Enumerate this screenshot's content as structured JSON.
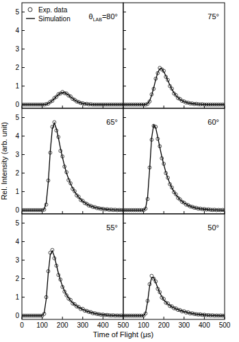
{
  "chart_data": [
    {
      "type": "line",
      "title": "θLAB=80°",
      "y_label": "Rel. Intensity (arb. unit)",
      "x_label": "Time of Flight (μs)",
      "legend": "upper left",
      "tick_labels": "y",
      "x": [
        0,
        10,
        20,
        30,
        40,
        50,
        60,
        70,
        80,
        90,
        100,
        110,
        120,
        130,
        140,
        150,
        160,
        170,
        180,
        190,
        200,
        210,
        220,
        230,
        240,
        250,
        260,
        270,
        280,
        290,
        300,
        310,
        320,
        330,
        340,
        350,
        360,
        370,
        380,
        390,
        400,
        410,
        420,
        430,
        440,
        450,
        460,
        470,
        480,
        490,
        500
      ],
      "xlim": [
        0,
        500
      ],
      "xticks": [
        0,
        100,
        200,
        300,
        400,
        500
      ],
      "ylim": [
        -0.2,
        5.5
      ],
      "yticks": [
        0,
        1,
        2,
        3,
        4,
        5
      ],
      "series": [
        {
          "name": "Exp. data",
          "type": "scatter",
          "marker": "circle",
          "color": "#333333",
          "values": [
            0,
            0,
            0,
            0,
            0,
            0,
            0,
            0,
            0,
            0,
            0,
            0,
            0.03,
            0.05,
            0.15,
            0.2,
            0.35,
            0.42,
            0.56,
            0.6,
            0.68,
            0.62,
            0.6,
            0.49,
            0.44,
            0.31,
            0.26,
            0.17,
            0.14,
            0.08,
            0.07,
            0.03,
            0.04,
            0.01,
            0.02,
            0,
            0,
            0,
            0,
            0,
            0,
            0,
            0,
            0,
            0,
            0,
            0,
            0,
            0,
            0,
            0
          ]
        },
        {
          "name": "Simulation",
          "type": "line",
          "line_style": "solid",
          "color": "#000000",
          "values": [
            0,
            0,
            0,
            0,
            0,
            0,
            0,
            0,
            0,
            0,
            0,
            0,
            0.02,
            0.06,
            0.13,
            0.22,
            0.33,
            0.44,
            0.54,
            0.61,
            0.65,
            0.64,
            0.59,
            0.51,
            0.42,
            0.33,
            0.25,
            0.18,
            0.13,
            0.09,
            0.06,
            0.04,
            0.03,
            0.02,
            0.01,
            0,
            0,
            0,
            0,
            0,
            0,
            0,
            0,
            0,
            0,
            0,
            0,
            0,
            0,
            0,
            0
          ]
        }
      ]
    },
    {
      "type": "line",
      "title": "75°",
      "tick_labels": false,
      "x": [
        0,
        10,
        20,
        30,
        40,
        50,
        60,
        70,
        80,
        90,
        100,
        110,
        120,
        130,
        140,
        150,
        160,
        170,
        180,
        190,
        200,
        210,
        220,
        230,
        240,
        250,
        260,
        270,
        280,
        290,
        300,
        310,
        320,
        330,
        340,
        350,
        360,
        370,
        380,
        390,
        400,
        410,
        420,
        430,
        440,
        450,
        460,
        470,
        480,
        490,
        500
      ],
      "xlim": [
        0,
        500
      ],
      "xticks": [
        100,
        200,
        300,
        400,
        500
      ],
      "ylim": [
        -0.2,
        5.5
      ],
      "yticks": [
        0,
        1,
        2,
        3,
        4,
        5
      ],
      "series": [
        {
          "type": "scatter",
          "marker": "circle",
          "color": "#333333",
          "values": [
            0,
            0,
            0,
            0,
            0,
            0,
            0,
            0,
            0,
            0,
            0,
            0,
            0.04,
            0.17,
            0.55,
            0.85,
            1.4,
            1.7,
            1.98,
            1.9,
            1.82,
            1.5,
            1.33,
            1.0,
            0.86,
            0.6,
            0.51,
            0.35,
            0.3,
            0.2,
            0.17,
            0.11,
            0.1,
            0.06,
            0.06,
            0.03,
            0.04,
            0.02,
            0.01,
            0.02,
            0,
            0,
            0,
            0,
            0,
            0,
            0,
            0,
            0,
            0,
            0
          ]
        },
        {
          "type": "line",
          "line_style": "solid",
          "color": "#000000",
          "values": [
            0,
            0,
            0,
            0,
            0,
            0,
            0,
            0,
            0,
            0,
            0,
            0,
            0.05,
            0.2,
            0.5,
            0.9,
            1.35,
            1.72,
            1.93,
            1.93,
            1.78,
            1.55,
            1.3,
            1.05,
            0.83,
            0.64,
            0.49,
            0.37,
            0.28,
            0.21,
            0.16,
            0.12,
            0.09,
            0.07,
            0.05,
            0.04,
            0.03,
            0.02,
            0.02,
            0.01,
            0.01,
            0,
            0,
            0,
            0,
            0,
            0,
            0,
            0,
            0,
            0
          ]
        }
      ]
    },
    {
      "type": "line",
      "title": "65°",
      "tick_labels": "y",
      "x": [
        0,
        10,
        20,
        30,
        40,
        50,
        60,
        70,
        80,
        90,
        100,
        110,
        120,
        130,
        140,
        150,
        160,
        170,
        180,
        190,
        200,
        210,
        220,
        230,
        240,
        250,
        260,
        270,
        280,
        290,
        300,
        310,
        320,
        330,
        340,
        350,
        360,
        370,
        380,
        390,
        400,
        410,
        420,
        430,
        440,
        450,
        460,
        470,
        480,
        490,
        500
      ],
      "xlim": [
        0,
        500
      ],
      "xticks": [
        0,
        100,
        200,
        300,
        400,
        500
      ],
      "ylim": [
        -0.2,
        5.5
      ],
      "yticks": [
        0,
        1,
        2,
        3,
        4,
        5
      ],
      "series": [
        {
          "type": "scatter",
          "marker": "circle",
          "color": "#333333",
          "values": [
            0,
            0,
            0,
            0,
            0,
            0,
            0,
            0,
            0,
            0,
            0,
            0.03,
            0.3,
            1.6,
            3.1,
            4.5,
            4.75,
            4.3,
            3.95,
            3.2,
            2.9,
            2.35,
            2.05,
            1.62,
            1.45,
            1.15,
            1.02,
            0.8,
            0.72,
            0.55,
            0.5,
            0.38,
            0.34,
            0.25,
            0.23,
            0.17,
            0.16,
            0.11,
            0.1,
            0.07,
            0.07,
            0.04,
            0.05,
            0.02,
            0.03,
            0.01,
            0.02,
            0,
            0.01,
            0,
            0
          ]
        },
        {
          "type": "line",
          "line_style": "solid",
          "color": "#000000",
          "values": [
            0,
            0,
            0,
            0,
            0,
            0,
            0,
            0,
            0,
            0,
            0,
            0.05,
            0.4,
            1.5,
            3.2,
            4.4,
            4.7,
            4.4,
            3.9,
            3.35,
            2.85,
            2.4,
            2.0,
            1.7,
            1.42,
            1.2,
            1.0,
            0.84,
            0.7,
            0.58,
            0.48,
            0.4,
            0.33,
            0.27,
            0.22,
            0.18,
            0.15,
            0.12,
            0.1,
            0.08,
            0.06,
            0.05,
            0.04,
            0.03,
            0.02,
            0.02,
            0.01,
            0.01,
            0.01,
            0,
            0
          ]
        }
      ]
    },
    {
      "type": "line",
      "title": "60°",
      "tick_labels": false,
      "x": [
        0,
        10,
        20,
        30,
        40,
        50,
        60,
        70,
        80,
        90,
        100,
        110,
        120,
        130,
        140,
        150,
        160,
        170,
        180,
        190,
        200,
        210,
        220,
        230,
        240,
        250,
        260,
        270,
        280,
        290,
        300,
        310,
        320,
        330,
        340,
        350,
        360,
        370,
        380,
        390,
        400,
        410,
        420,
        430,
        440,
        450,
        460,
        470,
        480,
        490,
        500
      ],
      "xlim": [
        0,
        500
      ],
      "xticks": [
        100,
        200,
        300,
        400,
        500
      ],
      "ylim": [
        -0.2,
        5.5
      ],
      "yticks": [
        0,
        1,
        2,
        3,
        4,
        5
      ],
      "series": [
        {
          "type": "scatter",
          "marker": "circle",
          "color": "#333333",
          "values": [
            0,
            0,
            0,
            0,
            0,
            0,
            0,
            0,
            0,
            0,
            0,
            0.08,
            0.6,
            2.3,
            3.8,
            4.55,
            4.5,
            3.85,
            3.45,
            2.8,
            2.5,
            2.0,
            1.75,
            1.4,
            1.22,
            0.97,
            0.85,
            0.66,
            0.58,
            0.45,
            0.4,
            0.3,
            0.27,
            0.2,
            0.18,
            0.13,
            0.12,
            0.08,
            0.08,
            0.05,
            0.06,
            0.03,
            0.04,
            0.02,
            0.01,
            0.02,
            0,
            0.01,
            0,
            0.01,
            0
          ]
        },
        {
          "type": "line",
          "line_style": "solid",
          "color": "#000000",
          "values": [
            0,
            0,
            0,
            0,
            0,
            0,
            0,
            0,
            0,
            0,
            0,
            0.1,
            0.7,
            2.2,
            3.9,
            4.6,
            4.45,
            3.95,
            3.4,
            2.9,
            2.45,
            2.05,
            1.72,
            1.44,
            1.2,
            1.0,
            0.83,
            0.69,
            0.57,
            0.47,
            0.39,
            0.32,
            0.26,
            0.21,
            0.17,
            0.14,
            0.11,
            0.09,
            0.07,
            0.06,
            0.05,
            0.04,
            0.03,
            0.02,
            0.02,
            0.01,
            0.01,
            0.01,
            0,
            0,
            0
          ]
        }
      ]
    },
    {
      "type": "line",
      "title": "55°",
      "tick_labels": true,
      "x": [
        0,
        10,
        20,
        30,
        40,
        50,
        60,
        70,
        80,
        90,
        100,
        110,
        120,
        130,
        140,
        150,
        160,
        170,
        180,
        190,
        200,
        210,
        220,
        230,
        240,
        250,
        260,
        270,
        280,
        290,
        300,
        310,
        320,
        330,
        340,
        350,
        360,
        370,
        380,
        390,
        400,
        410,
        420,
        430,
        440,
        450,
        460,
        470,
        480,
        490,
        500
      ],
      "xlim": [
        0,
        500
      ],
      "xticks": [
        0,
        100,
        200,
        300,
        400,
        500
      ],
      "ylim": [
        -0.2,
        5.5
      ],
      "yticks": [
        0,
        1,
        2,
        3,
        4,
        5
      ],
      "series": [
        {
          "type": "scatter",
          "marker": "circle",
          "color": "#333333",
          "values": [
            0,
            0,
            0,
            0,
            0,
            0,
            0,
            0,
            0,
            0,
            0,
            0.1,
            1.0,
            2.4,
            3.4,
            3.55,
            3.1,
            2.7,
            2.2,
            1.95,
            1.55,
            1.3,
            1.1,
            0.92,
            0.85,
            0.66,
            0.62,
            0.5,
            0.47,
            0.36,
            0.37,
            0.27,
            0.26,
            0.2,
            0.19,
            0.13,
            0.13,
            0.09,
            0.08,
            0.05,
            0.06,
            0.03,
            0.04,
            0.02,
            0.01,
            0.02,
            0,
            0.01,
            0,
            0.01,
            0
          ]
        },
        {
          "type": "line",
          "line_style": "solid",
          "color": "#000000",
          "values": [
            0,
            0,
            0,
            0,
            0,
            0,
            0,
            0,
            0,
            0,
            0,
            0.15,
            0.9,
            2.3,
            3.3,
            3.5,
            3.2,
            2.75,
            2.3,
            1.92,
            1.6,
            1.34,
            1.13,
            0.96,
            0.82,
            0.7,
            0.6,
            0.52,
            0.45,
            0.39,
            0.34,
            0.29,
            0.25,
            0.21,
            0.18,
            0.15,
            0.12,
            0.1,
            0.08,
            0.06,
            0.05,
            0.04,
            0.03,
            0.02,
            0.02,
            0.01,
            0.01,
            0.01,
            0,
            0,
            0
          ]
        }
      ]
    },
    {
      "type": "line",
      "title": "50°",
      "tick_labels": "x",
      "x": [
        0,
        10,
        20,
        30,
        40,
        50,
        60,
        70,
        80,
        90,
        100,
        110,
        120,
        130,
        140,
        150,
        160,
        170,
        180,
        190,
        200,
        210,
        220,
        230,
        240,
        250,
        260,
        270,
        280,
        290,
        300,
        310,
        320,
        330,
        340,
        350,
        360,
        370,
        380,
        390,
        400,
        410,
        420,
        430,
        440,
        450,
        460,
        470,
        480,
        490,
        500
      ],
      "xlim": [
        0,
        500
      ],
      "xticks": [
        100,
        200,
        300,
        400,
        500
      ],
      "ylim": [
        -0.2,
        5.5
      ],
      "yticks": [
        0,
        1,
        2,
        3,
        4,
        5
      ],
      "series": [
        {
          "type": "scatter",
          "marker": "circle",
          "color": "#333333",
          "values": [
            0,
            0,
            0,
            0,
            0,
            0,
            0,
            0,
            0,
            0,
            0,
            0.12,
            0.8,
            1.7,
            2.15,
            2.0,
            1.85,
            1.45,
            1.27,
            0.98,
            0.9,
            0.7,
            0.66,
            0.52,
            0.5,
            0.4,
            0.39,
            0.31,
            0.3,
            0.23,
            0.24,
            0.17,
            0.18,
            0.12,
            0.13,
            0.09,
            0.08,
            0.06,
            0.07,
            0.04,
            0.05,
            0.02,
            0.03,
            0.01,
            0.02,
            0,
            0.01,
            0,
            0.01,
            0,
            0
          ]
        },
        {
          "type": "line",
          "line_style": "solid",
          "color": "#000000",
          "values": [
            0,
            0,
            0,
            0,
            0,
            0,
            0,
            0,
            0,
            0,
            0,
            0.15,
            0.75,
            1.6,
            2.05,
            2.05,
            1.8,
            1.5,
            1.24,
            1.03,
            0.86,
            0.73,
            0.63,
            0.55,
            0.48,
            0.42,
            0.37,
            0.33,
            0.29,
            0.25,
            0.22,
            0.19,
            0.16,
            0.14,
            0.12,
            0.1,
            0.08,
            0.07,
            0.06,
            0.05,
            0.04,
            0.03,
            0.02,
            0.02,
            0.01,
            0.01,
            0.01,
            0,
            0,
            0,
            0
          ]
        }
      ]
    }
  ]
}
